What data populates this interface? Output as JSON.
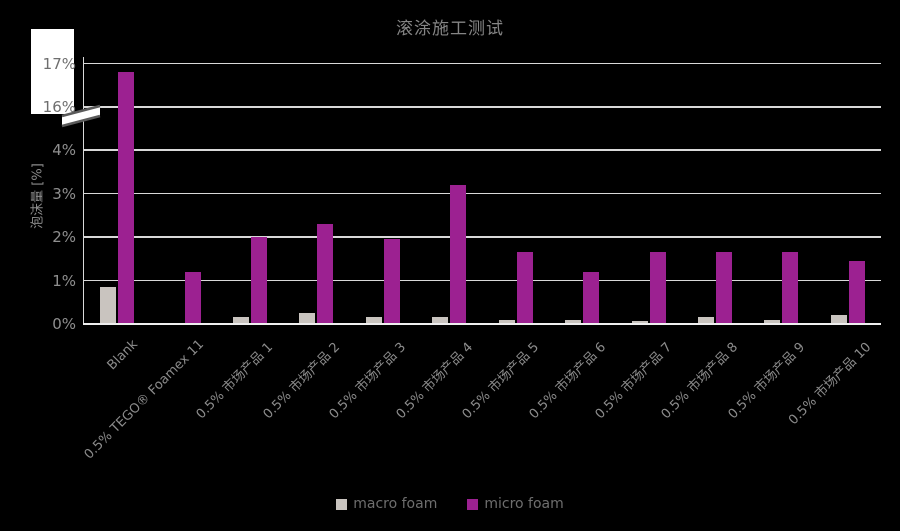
{
  "title": "滚涂施工测试",
  "colors": {
    "background": "#000000",
    "gridline": "#D9D9D9",
    "axis_line": "#D9D9D9",
    "baseline": "#EFEFEF",
    "macro_foam": "#C9C4BF",
    "micro_foam": "#9C2191",
    "text": "#8C8C8C"
  },
  "chart_data": {
    "type": "bar",
    "title": "滚涂施工测试",
    "xlabel": "",
    "ylabel": "泡沫量 [%]",
    "grid": true,
    "legend_position": "bottom",
    "axis_break": {
      "between": [
        4,
        16
      ],
      "note": "broken y-axis: 0-4% then 16-17%"
    },
    "y_ticks": [
      {
        "value": 0,
        "label": "0%"
      },
      {
        "value": 1,
        "label": "1%"
      },
      {
        "value": 2,
        "label": "2%"
      },
      {
        "value": 3,
        "label": "3%"
      },
      {
        "value": 4,
        "label": "4%"
      },
      {
        "value": 16,
        "label": "16%"
      },
      {
        "value": 17,
        "label": "17%"
      }
    ],
    "categories": [
      "Blank",
      "0.5% TEGO® Foamex 11",
      "0.5% 市场产品 1",
      "0.5% 市场产品 2",
      "0.5% 市场产品 3",
      "0.5% 市场产品 4",
      "0.5% 市场产品 5",
      "0.5% 市场产品 6",
      "0.5% 市场产品 7",
      "0.5% 市场产品 8",
      "0.5% 市场产品 9",
      "0.5% 市场产品 10"
    ],
    "series": [
      {
        "name": "macro foam",
        "color": "#C9C4BF",
        "values": [
          0.85,
          0,
          0.15,
          0.25,
          0.15,
          0.15,
          0.1,
          0.1,
          0.08,
          0.15,
          0.1,
          0.2
        ]
      },
      {
        "name": "micro foam",
        "color": "#9C2191",
        "values": [
          16.8,
          1.2,
          2.0,
          2.3,
          1.95,
          3.2,
          1.65,
          1.2,
          1.65,
          1.65,
          1.65,
          1.45
        ]
      }
    ]
  }
}
